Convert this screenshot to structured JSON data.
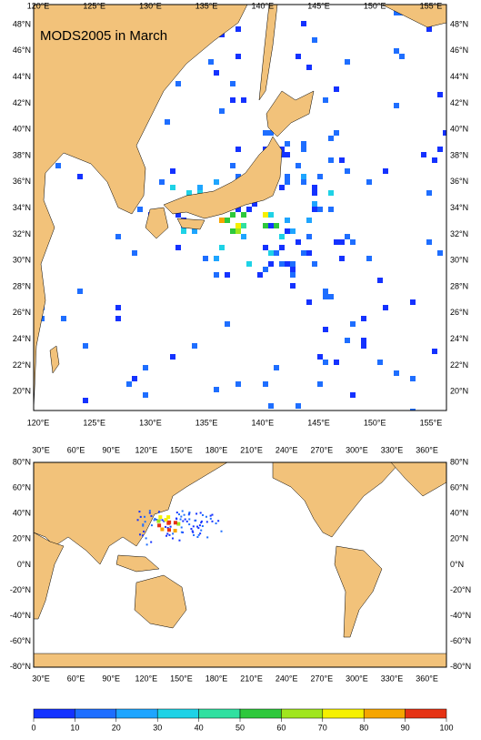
{
  "top_map": {
    "title": "MODS2005 in March",
    "lon_labels": [
      "120°E",
      "125°E",
      "130°E",
      "135°E",
      "140°E",
      "145°E",
      "150°E",
      "155°E"
    ],
    "lat_labels": [
      "48°N",
      "46°N",
      "44°N",
      "42°N",
      "40°N",
      "38°N",
      "36°N",
      "34°N",
      "32°N",
      "30°N",
      "28°N",
      "26°N",
      "24°N",
      "22°N",
      "20°N"
    ]
  },
  "bottom_map": {
    "lon_labels": [
      "30°E",
      "60°E",
      "90°E",
      "120°E",
      "150°E",
      "180°E",
      "210°E",
      "240°E",
      "270°E",
      "300°E",
      "330°E",
      "360°E"
    ],
    "lat_labels": [
      "80°N",
      "60°N",
      "40°N",
      "20°N",
      "0°N",
      "-20°N",
      "-40°N",
      "-60°N",
      "-80°N"
    ]
  },
  "colorbar": {
    "ticks": [
      0,
      10,
      20,
      30,
      40,
      50,
      60,
      70,
      80,
      90,
      100
    ],
    "colors": [
      "#1432ff",
      "#1e6eff",
      "#1ea5ff",
      "#1ed2e6",
      "#30e0a0",
      "#2ec83c",
      "#a0e61e",
      "#f5f000",
      "#f5a500",
      "#e63214"
    ]
  }
}
